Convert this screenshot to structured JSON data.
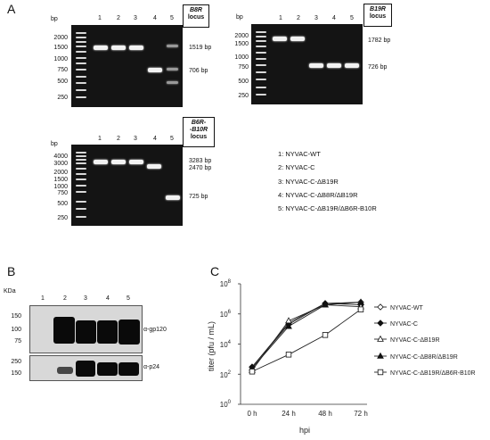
{
  "panels": {
    "a": "A",
    "b": "B",
    "c": "C"
  },
  "gel1": {
    "bp_label": "bp",
    "lanes": [
      "1",
      "2",
      "3",
      "4",
      "5"
    ],
    "ladder": [
      "2000",
      "1500",
      "1000",
      "750",
      "500",
      "250"
    ],
    "locus_title": "B8R",
    "locus_sub": "locus",
    "sizes": [
      "1519 bp",
      "706 bp"
    ]
  },
  "gel2": {
    "bp_label": "bp",
    "lanes": [
      "1",
      "2",
      "3",
      "4",
      "5"
    ],
    "ladder": [
      "2000",
      "1500",
      "1000",
      "750",
      "500",
      "250"
    ],
    "locus_title": "B19R",
    "locus_sub": "locus",
    "sizes": [
      "1782 bp",
      "726 bp"
    ]
  },
  "gel3": {
    "bp_label": "bp",
    "lanes": [
      "1",
      "2",
      "3",
      "4",
      "5"
    ],
    "ladder": [
      "4000",
      "3000",
      "2000",
      "1500",
      "1000",
      "750",
      "500",
      "250"
    ],
    "locus_title": "B6R-",
    "locus_title2": "-B10R",
    "locus_sub": "locus",
    "sizes": [
      "3283 bp",
      "2470 bp",
      "725 bp"
    ]
  },
  "lane_legend": [
    "1: NYVAC-WT",
    "2: NYVAC-C",
    "3: NYVAC-C-ΔB19R",
    "4: NYVAC-C-ΔB8R/ΔB19R",
    "5: NYVAC-C-ΔB19R/ΔB6R-B10R"
  ],
  "western": {
    "kda_label": "KDa",
    "lanes": [
      "1",
      "2",
      "3",
      "4",
      "5"
    ],
    "top_markers": [
      "150",
      "100",
      "75"
    ],
    "bottom_markers": [
      "250",
      "150"
    ],
    "top_antibody": "α-gp120",
    "bottom_antibody": "α-p24"
  },
  "chart_data": {
    "type": "line",
    "title": "",
    "xlabel": "hpi",
    "ylabel": "titer (pfu / mL)",
    "categories": [
      "0 h",
      "24 h",
      "48 h",
      "72 h"
    ],
    "yscale": "log",
    "ylim": [
      1,
      100000000
    ],
    "yticks": [
      "10^0",
      "10^2",
      "10^4",
      "10^6",
      "10^8"
    ],
    "legend_position": "right",
    "series": [
      {
        "name": "NYVAC-WT",
        "marker": "diamond-open",
        "values": [
          300,
          250000,
          5000000,
          6000000
        ]
      },
      {
        "name": "NYVAC-C",
        "marker": "diamond-filled",
        "values": [
          300,
          200000,
          5000000,
          4000000
        ]
      },
      {
        "name": "NYVAC-C-ΔB19R",
        "marker": "triangle-open",
        "values": [
          180,
          350000,
          4000000,
          3000000
        ]
      },
      {
        "name": "NYVAC-C-ΔB8R/ΔB19R",
        "marker": "triangle-filled",
        "values": [
          250,
          150000,
          4000000,
          6000000
        ]
      },
      {
        "name": "NYVAC-C-ΔB19R/ΔB6R-B10R",
        "marker": "square-open",
        "values": [
          150,
          2000,
          40000,
          2000000
        ]
      }
    ],
    "legend_labels": {
      "s0_a": "NYVAC-WT",
      "s1_a": "NYVAC-C",
      "s2_a": "NYVAC-C-Δ",
      "s2_b": "B19R",
      "s3_a": "NYVAC-C-Δ",
      "s3_b": "B8R/Δ",
      "s3_c": "B19R",
      "s4_a": "NYVAC-C-Δ",
      "s4_b": "B19R/Δ",
      "s4_c": "B6R-B10R"
    },
    "exp_labels": {
      "e0": "0",
      "e2": "2",
      "e4": "4",
      "e6": "6",
      "e8": "8",
      "base": "10"
    }
  }
}
